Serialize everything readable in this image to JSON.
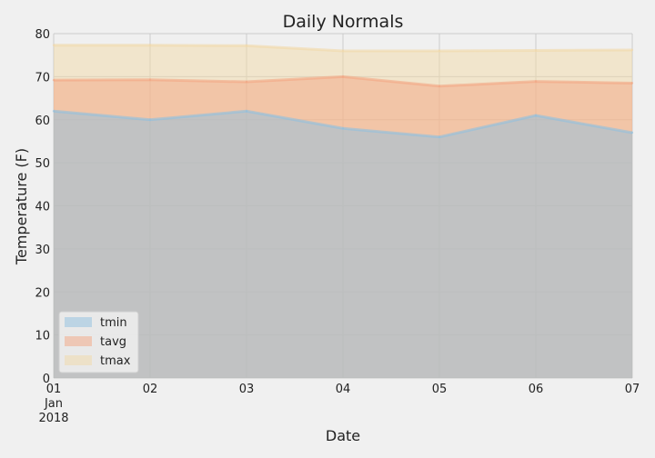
{
  "chart_data": {
    "type": "area",
    "title": "Daily Normals",
    "xlabel": "Date",
    "ylabel": "Temperature (F)",
    "x": [
      "01",
      "02",
      "03",
      "04",
      "05",
      "06",
      "07"
    ],
    "x_sublabel_lines": [
      "Jan",
      "2018"
    ],
    "ylim": [
      0,
      80
    ],
    "yticks": [
      0,
      10,
      20,
      30,
      40,
      50,
      60,
      70,
      80
    ],
    "grid": true,
    "stacked": false,
    "legend_position": "lower-left",
    "series": [
      {
        "name": "tmin",
        "color": "#8fbfe0",
        "values": [
          62.0,
          60.0,
          62.0,
          58.0,
          56.0,
          61.0,
          57.0
        ]
      },
      {
        "name": "tavg",
        "color": "#f4a582",
        "values": [
          69.2,
          69.3,
          68.8,
          70.0,
          67.8,
          68.9,
          68.5
        ]
      },
      {
        "name": "tmax",
        "color": "#f1d9a8",
        "values": [
          77.3,
          77.3,
          77.2,
          76.0,
          76.0,
          76.1,
          76.2
        ]
      }
    ]
  }
}
